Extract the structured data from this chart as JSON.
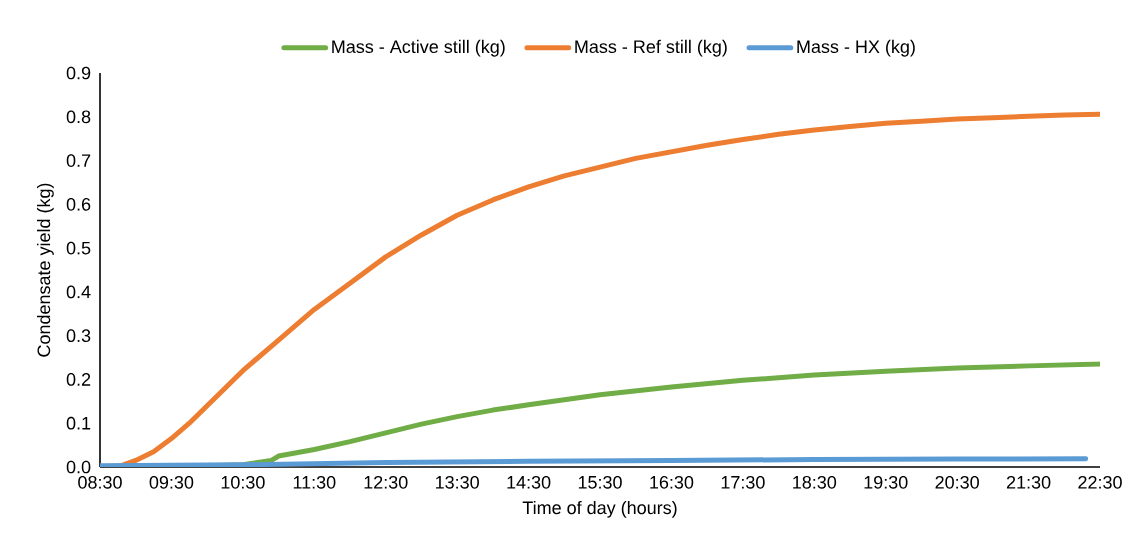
{
  "chart_data": {
    "type": "line",
    "xlabel": "Time of day (hours)",
    "ylabel": "Condensate yield (kg)",
    "xlim": [
      8.5,
      22.5
    ],
    "ylim": [
      0,
      0.9
    ],
    "xticks": [
      {
        "value": 8.5,
        "label": "08:30"
      },
      {
        "value": 9.5,
        "label": "09:30"
      },
      {
        "value": 10.5,
        "label": "10:30"
      },
      {
        "value": 11.5,
        "label": "11:30"
      },
      {
        "value": 12.5,
        "label": "12:30"
      },
      {
        "value": 13.5,
        "label": "13:30"
      },
      {
        "value": 14.5,
        "label": "14:30"
      },
      {
        "value": 15.5,
        "label": "15:30"
      },
      {
        "value": 16.5,
        "label": "16:30"
      },
      {
        "value": 17.5,
        "label": "17:30"
      },
      {
        "value": 18.5,
        "label": "18:30"
      },
      {
        "value": 19.5,
        "label": "19:30"
      },
      {
        "value": 20.5,
        "label": "20:30"
      },
      {
        "value": 21.5,
        "label": "21:30"
      },
      {
        "value": 22.5,
        "label": "22:30"
      }
    ],
    "yticks": [
      {
        "value": 0,
        "label": "0.0"
      },
      0.1,
      0.2,
      0.3,
      0.4,
      0.5,
      0.6,
      0.7,
      0.8,
      0.9
    ],
    "legend": "top",
    "grid": false,
    "marker": "none",
    "line_style": "solid",
    "series": [
      {
        "name": "Mass - Active still (kg)",
        "color": "#70ad47",
        "x": [
          8.5,
          9.5,
          10.5,
          10.9,
          11.0,
          11.5,
          12.0,
          12.5,
          13.0,
          13.5,
          14.0,
          14.5,
          15.5,
          16.5,
          17.5,
          18.5,
          19.5,
          20.5,
          21.5,
          22.5
        ],
        "values": [
          0.0,
          0.0,
          0.005,
          0.015,
          0.025,
          0.04,
          0.058,
          0.078,
          0.098,
          0.115,
          0.13,
          0.142,
          0.165,
          0.183,
          0.198,
          0.21,
          0.219,
          0.226,
          0.231,
          0.235
        ]
      },
      {
        "name": "Mass - Ref still (kg)",
        "color": "#ed7d31",
        "x": [
          8.5,
          8.8,
          9.0,
          9.25,
          9.5,
          9.75,
          10.0,
          10.5,
          11.0,
          11.5,
          12.0,
          12.5,
          13.0,
          13.5,
          14.0,
          14.5,
          15.0,
          15.5,
          16.0,
          16.5,
          17.0,
          17.5,
          18.0,
          18.5,
          19.0,
          19.5,
          20.0,
          20.5,
          21.0,
          21.5,
          22.0,
          22.5
        ],
        "values": [
          0.0,
          0.003,
          0.015,
          0.035,
          0.065,
          0.1,
          0.14,
          0.22,
          0.29,
          0.36,
          0.42,
          0.48,
          0.53,
          0.575,
          0.61,
          0.64,
          0.665,
          0.685,
          0.705,
          0.72,
          0.735,
          0.748,
          0.76,
          0.77,
          0.778,
          0.785,
          0.79,
          0.795,
          0.798,
          0.801,
          0.804,
          0.806
        ]
      },
      {
        "name": "Mass - HX (kg)",
        "color": "#5b9bd5",
        "x": [
          8.5,
          10.5,
          12.5,
          14.5,
          16.5,
          18.5,
          20.5,
          22.3
        ],
        "values": [
          0.003,
          0.005,
          0.01,
          0.013,
          0.015,
          0.017,
          0.018,
          0.019
        ]
      }
    ]
  }
}
